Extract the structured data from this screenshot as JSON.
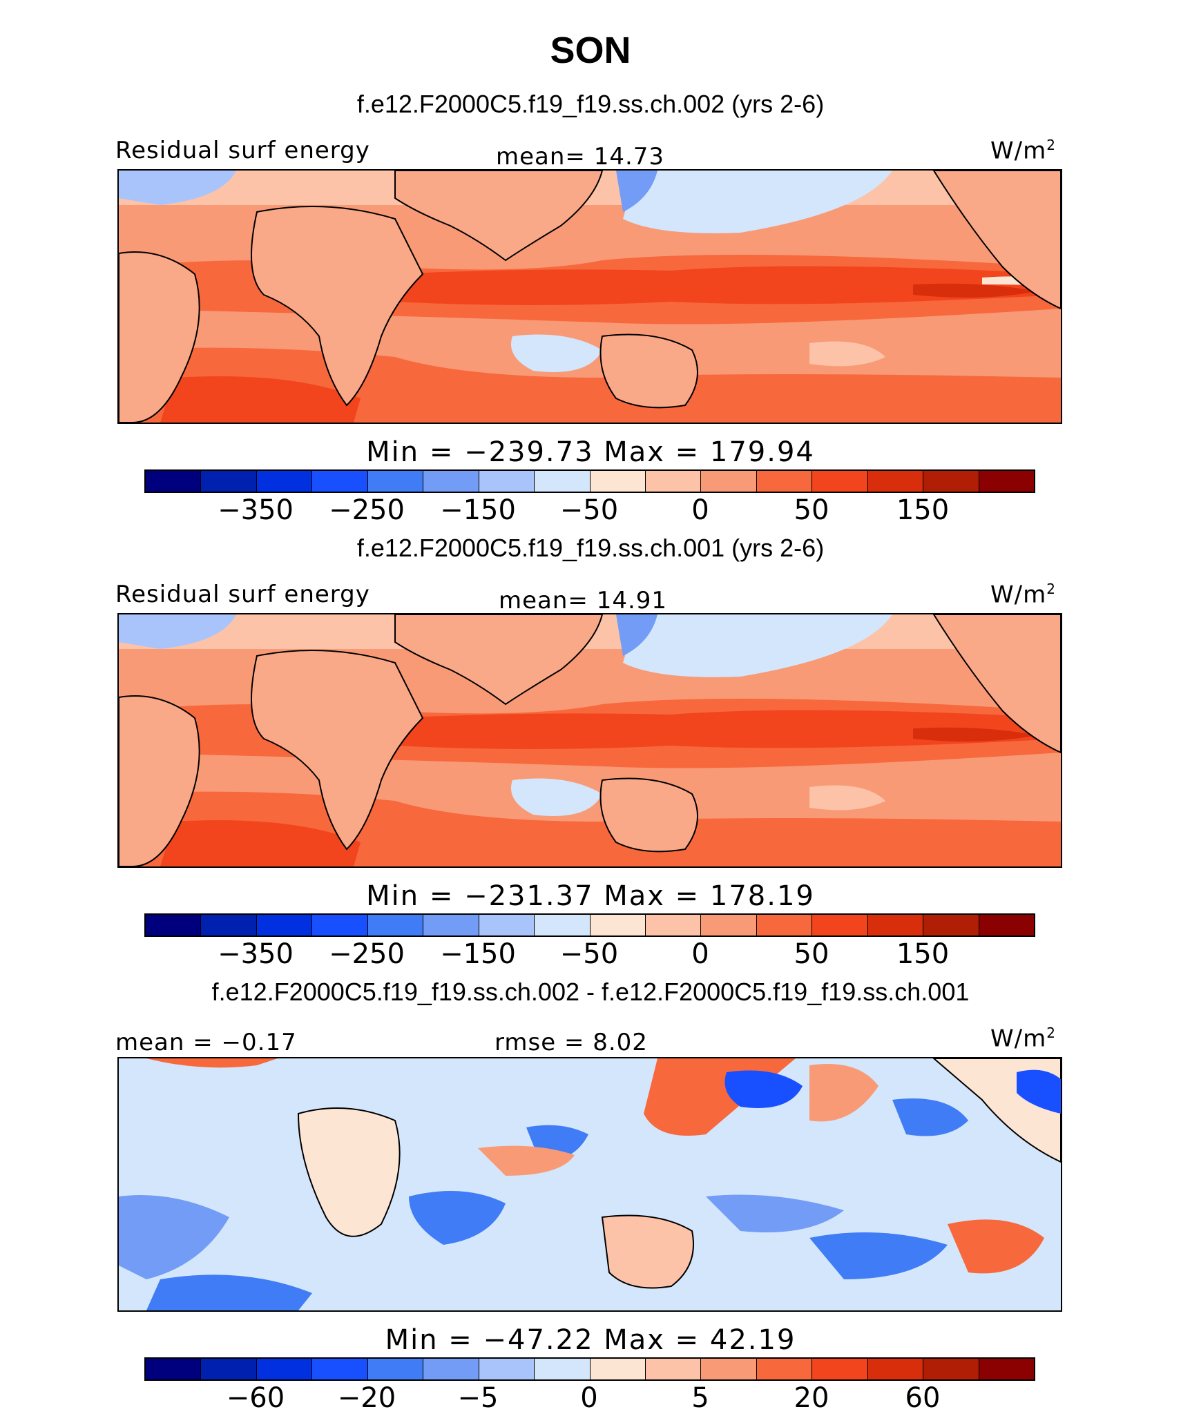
{
  "title": "SON",
  "panels": [
    {
      "case_title": "f.e12.F2000C5.f19_f19.ss.ch.002 (yrs 2-6)",
      "left_label": "Residual surf energy",
      "center_label": "mean=   14.73",
      "units_base": "W/m",
      "units_exp": "2",
      "minmax": "Min  =  −239.73  Max  =  179.94",
      "colorbar_ticks": [
        "−350",
        "−250",
        "−150",
        "−50",
        "0",
        "50",
        "150"
      ]
    },
    {
      "case_title": "f.e12.F2000C5.f19_f19.ss.ch.001 (yrs 2-6)",
      "left_label": "Residual surf energy",
      "center_label": "mean=   14.91",
      "units_base": "W/m",
      "units_exp": "2",
      "minmax": "Min  =  −231.37  Max  =  178.19",
      "colorbar_ticks": [
        "−350",
        "−250",
        "−150",
        "−50",
        "0",
        "50",
        "150"
      ]
    },
    {
      "case_title": "f.e12.F2000C5.f19_f19.ss.ch.002 - f.e12.F2000C5.f19_f19.ss.ch.001",
      "left_label": "mean =   −0.17",
      "center_label": "rmse  =      8.02",
      "units_base": "W/m",
      "units_exp": "2",
      "minmax": "Min  =  −47.22  Max  =    42.19",
      "colorbar_ticks": [
        "−60",
        "−20",
        "−5",
        "0",
        "5",
        "20",
        "60"
      ]
    }
  ],
  "colorbar_colors": [
    "#00007f",
    "#0020b0",
    "#0030e0",
    "#1850ff",
    "#3f7cf5",
    "#729cf5",
    "#a8c4fb",
    "#d3e6fb",
    "#fde5d3",
    "#fcc3a8",
    "#f99a77",
    "#f7683d",
    "#f2451e",
    "#d92e0b",
    "#b01e06",
    "#8b0000"
  ],
  "colors": {
    "land_warm": "#f9a987",
    "ocean_warm": "#f7683d",
    "ocean_hot": "#f2451e",
    "cool": "#d3e6fb",
    "diff_bg": "#d6e4fa"
  }
}
